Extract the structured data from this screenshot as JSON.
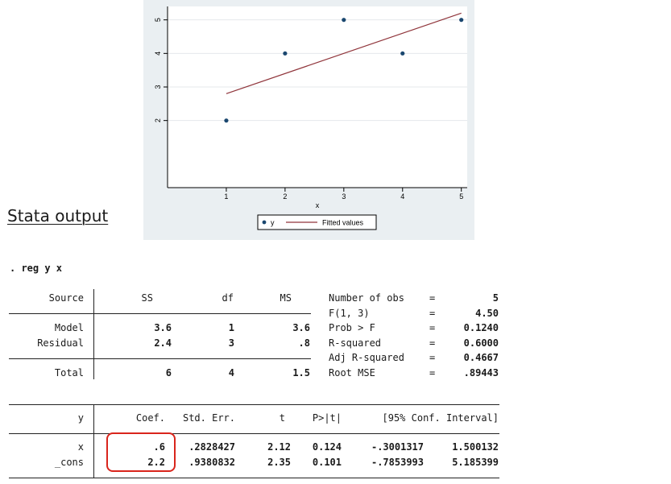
{
  "section_title": "Stata output",
  "command": ". reg y x",
  "chart_data": {
    "type": "scatter",
    "x": [
      1,
      2,
      3,
      4,
      5
    ],
    "y": [
      2,
      4,
      5,
      4,
      5
    ],
    "fitted": {
      "intercept": 2.2,
      "slope": 0.6
    },
    "xlabel": "x",
    "ylabel": "",
    "xticks": [
      "1",
      "2",
      "3",
      "4",
      "5"
    ],
    "yticks": [
      "2",
      "3",
      "4",
      "5"
    ],
    "grid": true,
    "legend": [
      "y",
      "Fitted values"
    ],
    "legend_position": "bottom",
    "colors": {
      "points": "#1a476f",
      "line": "#90353b",
      "background": "#eaeff2"
    }
  },
  "anova": {
    "headers": [
      "Source",
      "SS",
      "df",
      "MS"
    ],
    "rows": [
      [
        "Model",
        "3.6",
        "1",
        "3.6"
      ],
      [
        "Residual",
        "2.4",
        "3",
        ".8"
      ]
    ],
    "total": [
      "Total",
      "6",
      "4",
      "1.5"
    ]
  },
  "stats": [
    [
      "Number of obs",
      "=",
      "5"
    ],
    [
      "F(1, 3)",
      "=",
      "4.50"
    ],
    [
      "Prob > F",
      "=",
      "0.1240"
    ],
    [
      "R-squared",
      "=",
      "0.6000"
    ],
    [
      "Adj R-squared",
      "=",
      "0.4667"
    ],
    [
      "Root MSE",
      "=",
      ".89443"
    ]
  ],
  "coef_table": {
    "headers": [
      "y",
      "Coef.",
      "Std. Err.",
      "t",
      "P>|t|",
      "[95% Conf. Interval]"
    ],
    "rows": [
      [
        "x",
        ".6",
        ".2828427",
        "2.12",
        "0.124",
        "-.3001317",
        "1.500132"
      ],
      [
        "_cons",
        "2.2",
        ".9380832",
        "2.35",
        "0.101",
        "-.7853993",
        "5.185399"
      ]
    ]
  }
}
